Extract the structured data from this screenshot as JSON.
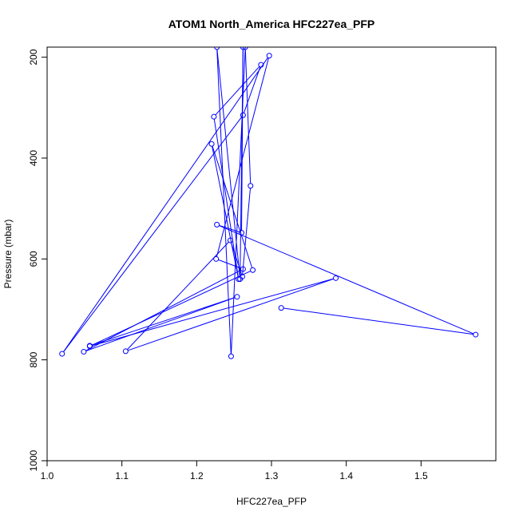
{
  "chart_data": {
    "type": "line",
    "title": "ATOM1 North_America HFC227ea_PFP",
    "xlabel": "HFC227ea_PFP",
    "ylabel": "Pressure (mbar)",
    "xlim": [
      1.0,
      1.6
    ],
    "ylim": [
      1000,
      180
    ],
    "y_inverted": true,
    "xticks": [
      1.0,
      1.1,
      1.2,
      1.3,
      1.4,
      1.5
    ],
    "yticks": [
      200,
      400,
      600,
      800,
      1000
    ],
    "grid": false,
    "series": [
      {
        "color": "#0000ff",
        "marker": "open-circle",
        "points": [
          {
            "x": 1.313,
            "y": 697
          },
          {
            "x": 1.573,
            "y": 750
          },
          {
            "x": 1.227,
            "y": 532
          },
          {
            "x": 1.26,
            "y": 548
          },
          {
            "x": 1.262,
            "y": 180
          },
          {
            "x": 1.258,
            "y": 640
          },
          {
            "x": 1.227,
            "y": 180
          },
          {
            "x": 1.246,
            "y": 793
          },
          {
            "x": 1.265,
            "y": 180
          },
          {
            "x": 1.272,
            "y": 455
          },
          {
            "x": 1.261,
            "y": 635
          },
          {
            "x": 1.245,
            "y": 563
          },
          {
            "x": 1.105,
            "y": 783
          },
          {
            "x": 1.386,
            "y": 638
          },
          {
            "x": 1.057,
            "y": 773
          },
          {
            "x": 1.275,
            "y": 622
          },
          {
            "x": 1.22,
            "y": 372
          },
          {
            "x": 1.256,
            "y": 640
          },
          {
            "x": 1.223,
            "y": 318
          },
          {
            "x": 1.286,
            "y": 215
          },
          {
            "x": 1.262,
            "y": 315
          },
          {
            "x": 1.02,
            "y": 788
          },
          {
            "x": 1.297,
            "y": 197
          },
          {
            "x": 1.226,
            "y": 600
          },
          {
            "x": 1.262,
            "y": 620
          },
          {
            "x": 1.049,
            "y": 784
          },
          {
            "x": 1.254,
            "y": 675
          },
          {
            "x": 1.057,
            "y": 772
          }
        ]
      }
    ]
  }
}
